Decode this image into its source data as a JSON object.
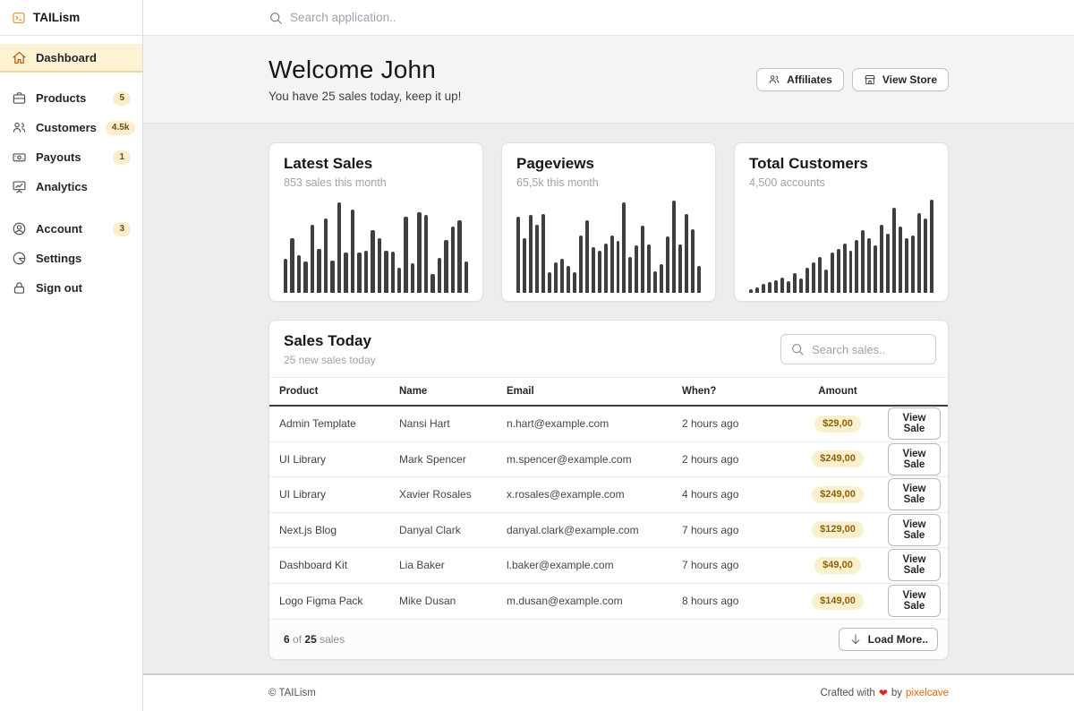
{
  "topbar": {
    "search_placeholder": "Search application..",
    "search_icon": "search-icon"
  },
  "sidebar": {
    "logo": {
      "label": "TAILism",
      "icon": "terminal-icon"
    },
    "items": [
      {
        "label": "Dashboard",
        "icon": "home-icon",
        "active": true
      },
      {
        "label": "Products",
        "icon": "briefcase-icon",
        "badge": "5",
        "first_of_group": true
      },
      {
        "label": "Customers",
        "icon": "users-icon",
        "badge": "4.5k"
      },
      {
        "label": "Payouts",
        "icon": "cash-icon",
        "badge": "1"
      },
      {
        "label": "Analytics",
        "icon": "presentation-chart-icon"
      },
      {
        "label": "Account",
        "icon": "user-circle-icon",
        "badge": "3",
        "group_start": true
      },
      {
        "label": "Settings",
        "icon": "pie-chart-icon"
      },
      {
        "label": "Sign out",
        "icon": "lock-icon"
      }
    ]
  },
  "welcome": {
    "title": "Welcome John",
    "subtitle": "You have 25 sales today, keep it up!",
    "buttons": [
      {
        "label": "Affiliates",
        "icon": "user-group-icon"
      },
      {
        "label": "View Store",
        "icon": "storefront-icon"
      }
    ]
  },
  "chart_data": [
    {
      "type": "bar",
      "title": "Latest Sales",
      "subtitle": "853 sales this month",
      "values": [
        36,
        58,
        40,
        33,
        72,
        46,
        78,
        34,
        95,
        42,
        88,
        42,
        44,
        66,
        58,
        44,
        43,
        26,
        80,
        31,
        85,
        82,
        20,
        37,
        56,
        70,
        76,
        33
      ],
      "ylim": [
        0,
        100
      ],
      "xlabel": "",
      "ylabel": "",
      "grid": false,
      "legend": false,
      "bar_color": "#3f3f3f"
    },
    {
      "type": "bar",
      "title": "Pageviews",
      "subtitle": "65,5k this month",
      "values": [
        80,
        58,
        82,
        72,
        83,
        22,
        32,
        36,
        28,
        22,
        60,
        76,
        48,
        44,
        52,
        60,
        55,
        95,
        38,
        50,
        71,
        51,
        23,
        30,
        59,
        97,
        51,
        83,
        67,
        28
      ],
      "ylim": [
        0,
        100
      ],
      "xlabel": "",
      "ylabel": "",
      "grid": false,
      "legend": false,
      "bar_color": "#3f3f3f"
    },
    {
      "type": "bar",
      "title": "Total Customers",
      "subtitle": "4,500 accounts",
      "values": [
        4,
        6,
        9,
        11,
        13,
        16,
        12,
        21,
        15,
        26,
        32,
        38,
        25,
        42,
        46,
        52,
        44,
        56,
        66,
        58,
        50,
        72,
        62,
        90,
        70,
        58,
        60,
        84,
        78,
        98
      ],
      "ylim": [
        0,
        100
      ],
      "xlabel": "",
      "ylabel": "",
      "grid": false,
      "legend": false,
      "bar_color": "#3f3f3f"
    }
  ],
  "sales_table": {
    "title": "Sales Today",
    "subtitle": "25 new sales today",
    "search_placeholder": "Search sales..",
    "search_icon": "search-icon",
    "columns": [
      "Product",
      "Name",
      "Email",
      "When?",
      "Amount"
    ],
    "rows": [
      {
        "product": "Admin Template",
        "name": "Nansi Hart",
        "email": "n.hart@example.com",
        "when": "2 hours ago",
        "amount": "$29,00",
        "action": "View Sale"
      },
      {
        "product": "UI Library",
        "name": "Mark Spencer",
        "email": "m.spencer@example.com",
        "when": "2 hours ago",
        "amount": "$249,00",
        "action": "View Sale"
      },
      {
        "product": "UI Library",
        "name": "Xavier Rosales",
        "email": "x.rosales@example.com",
        "when": "4 hours ago",
        "amount": "$249,00",
        "action": "View Sale"
      },
      {
        "product": "Next.js Blog",
        "name": "Danyal Clark",
        "email": "danyal.clark@example.com",
        "when": "7 hours ago",
        "amount": "$129,00",
        "action": "View Sale"
      },
      {
        "product": "Dashboard Kit",
        "name": "Lia Baker",
        "email": "l.baker@example.com",
        "when": "7 hours ago",
        "amount": "$49,00",
        "action": "View Sale"
      },
      {
        "product": "Logo Figma Pack",
        "name": "Mike Dusan",
        "email": "m.dusan@example.com",
        "when": "8 hours ago",
        "amount": "$149,00",
        "action": "View Sale"
      }
    ],
    "footer": {
      "count": "6",
      "of_label": "of",
      "total": "25",
      "unit_label": "sales",
      "load_more_label": "Load More..",
      "load_more_icon": "arrow-down-icon"
    }
  },
  "page_footer": {
    "copyright": "© TAILism",
    "crafted_prefix": "Crafted with",
    "heart_icon": "heart-icon",
    "crafted_middle": "by",
    "crafted_link": "pixelcave"
  },
  "colors": {
    "active_item_bg": "#fdf3d4",
    "active_item_border": "#ecd9a2",
    "active_icon": "#b45309",
    "badge_bg": "#faefcd",
    "badge_text": "#6b4e16",
    "amount_pill_bg": "#fbf0cd",
    "amount_pill_text": "#8f5e0a",
    "bar": "#3f3f3f",
    "content_bg": "#ededed",
    "heart": "#e02424",
    "link": "#e8650d"
  }
}
